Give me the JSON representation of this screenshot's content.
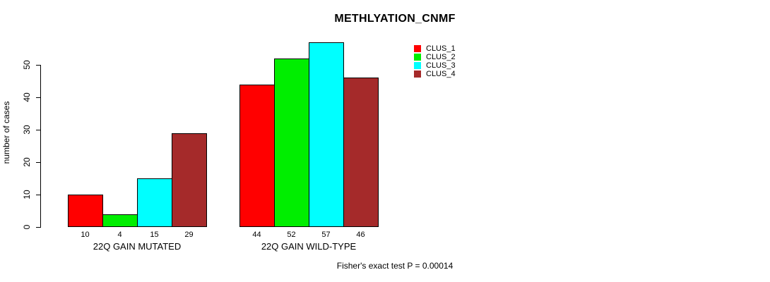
{
  "chart_data": {
    "type": "bar",
    "title": "METHLYATION_CNMF",
    "xlabel": "",
    "ylabel": "number of cases",
    "ylim": [
      0,
      50
    ],
    "yticks": [
      0,
      10,
      20,
      30,
      40,
      50
    ],
    "grid": false,
    "legend_position": "top-right",
    "categories": [
      "22Q GAIN MUTATED",
      "22Q GAIN WILD-TYPE"
    ],
    "series": [
      {
        "name": "CLUS_1",
        "color": "#ff0000",
        "values": [
          10,
          44
        ]
      },
      {
        "name": "CLUS_2",
        "color": "#00ee00",
        "values": [
          4,
          52
        ]
      },
      {
        "name": "CLUS_3",
        "color": "#00ffff",
        "values": [
          15,
          57
        ]
      },
      {
        "name": "CLUS_4",
        "color": "#a52a2a",
        "values": [
          29,
          46
        ]
      }
    ],
    "bar_value_labels": [
      [
        "10",
        "4",
        "15",
        "29"
      ],
      [
        "44",
        "52",
        "57",
        "46"
      ]
    ],
    "annotation": "Fisher's exact test P = 0.00014"
  }
}
